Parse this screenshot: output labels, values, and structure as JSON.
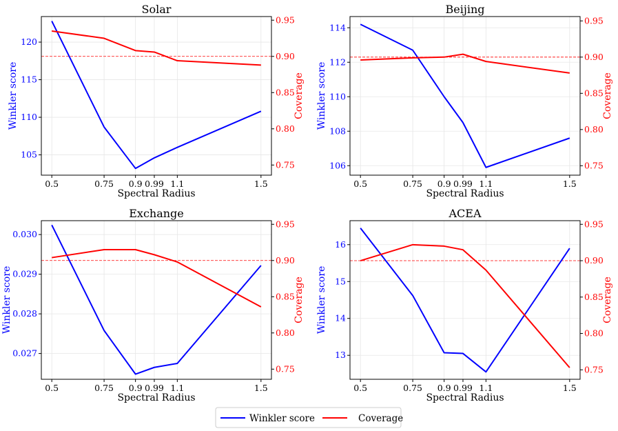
{
  "legend": {
    "items": [
      {
        "label": "Winkler score",
        "color": "#0000ff"
      },
      {
        "label": "Coverage",
        "color": "#ff0000"
      }
    ]
  },
  "colors": {
    "winkler": "#0000ff",
    "coverage": "#ff0000",
    "reference": "#ff0000",
    "grid": "#e6e6e6"
  },
  "chart_data": [
    {
      "type": "line",
      "title": "Solar",
      "xlabel": "Spectral Radius",
      "ylabel_left": "Winkler score",
      "ylabel_right": "Coverage",
      "x": [
        0.5,
        0.75,
        0.9,
        0.99,
        1.1,
        1.5
      ],
      "x_ticks": [
        "0.5",
        "0.75",
        "0.9",
        "0.99",
        "1.1",
        "1.5"
      ],
      "xlim": [
        0.45,
        1.55
      ],
      "ylim_left": [
        102.3,
        123.4
      ],
      "yticks_left": [
        "105",
        "110",
        "115",
        "120"
      ],
      "ylim_right": [
        0.736,
        0.955
      ],
      "yticks_right": [
        "0.75",
        "0.80",
        "0.85",
        "0.90",
        "0.95"
      ],
      "reference_line": 0.9,
      "series": [
        {
          "name": "Winkler score",
          "axis": "left",
          "values": [
            122.8,
            108.7,
            103.2,
            104.6,
            106.0,
            110.8
          ]
        },
        {
          "name": "Coverage",
          "axis": "right",
          "values": [
            0.935,
            0.925,
            0.908,
            0.906,
            0.894,
            0.888
          ]
        }
      ]
    },
    {
      "type": "line",
      "title": "Beijing",
      "xlabel": "Spectral Radius",
      "ylabel_left": "Winkler score",
      "ylabel_right": "Coverage",
      "x": [
        0.5,
        0.75,
        0.9,
        0.99,
        1.1,
        1.5
      ],
      "x_ticks": [
        "0.5",
        "0.75",
        "0.9",
        "0.99",
        "1.1",
        "1.5"
      ],
      "xlim": [
        0.45,
        1.55
      ],
      "ylim_left": [
        105.45,
        114.65
      ],
      "yticks_left": [
        "106",
        "108",
        "110",
        "112",
        "114"
      ],
      "ylim_right": [
        0.737,
        0.956
      ],
      "yticks_right": [
        "0.75",
        "0.80",
        "0.85",
        "0.90",
        "0.95"
      ],
      "reference_line": 0.9,
      "series": [
        {
          "name": "Winkler score",
          "axis": "left",
          "values": [
            114.2,
            112.7,
            110.0,
            108.5,
            105.9,
            107.6
          ]
        },
        {
          "name": "Coverage",
          "axis": "right",
          "values": [
            0.896,
            0.899,
            0.9,
            0.904,
            0.894,
            0.878
          ]
        }
      ]
    },
    {
      "type": "line",
      "title": "Exchange",
      "xlabel": "Spectral Radius",
      "ylabel_left": "Winkler score",
      "ylabel_right": "Coverage",
      "x": [
        0.5,
        0.75,
        0.9,
        0.99,
        1.1,
        1.5
      ],
      "x_ticks": [
        "0.5",
        "0.75",
        "0.9",
        "0.99",
        "1.1",
        "1.5"
      ],
      "xlim": [
        0.45,
        1.55
      ],
      "ylim_left": [
        0.02635,
        0.03035
      ],
      "yticks_left": [
        "0.027",
        "0.028",
        "0.029",
        "0.030"
      ],
      "ylim_right": [
        0.736,
        0.955
      ],
      "yticks_right": [
        "0.75",
        "0.80",
        "0.85",
        "0.90",
        "0.95"
      ],
      "reference_line": 0.9,
      "series": [
        {
          "name": "Winkler score",
          "axis": "left",
          "values": [
            0.03024,
            0.02758,
            0.02648,
            0.02665,
            0.02675,
            0.02922
          ]
        },
        {
          "name": "Coverage",
          "axis": "right",
          "values": [
            0.904,
            0.915,
            0.915,
            0.908,
            0.898,
            0.836
          ]
        }
      ]
    },
    {
      "type": "line",
      "title": "ACEA",
      "xlabel": "Spectral Radius",
      "ylabel_left": "Winkler score",
      "ylabel_right": "Coverage",
      "x": [
        0.5,
        0.75,
        0.9,
        0.99,
        1.1,
        1.5
      ],
      "x_ticks": [
        "0.5",
        "0.75",
        "0.9",
        "0.99",
        "1.1",
        "1.5"
      ],
      "xlim": [
        0.45,
        1.55
      ],
      "ylim_left": [
        12.35,
        16.65
      ],
      "yticks_left": [
        "13",
        "14",
        "15",
        "16"
      ],
      "ylim_right": [
        0.737,
        0.955
      ],
      "yticks_right": [
        "0.75",
        "0.80",
        "0.85",
        "0.90",
        "0.95"
      ],
      "reference_line": 0.9,
      "series": [
        {
          "name": "Winkler score",
          "axis": "left",
          "values": [
            16.45,
            14.62,
            13.07,
            13.05,
            12.55,
            15.9
          ]
        },
        {
          "name": "Coverage",
          "axis": "right",
          "values": [
            0.9,
            0.922,
            0.92,
            0.915,
            0.887,
            0.753
          ]
        }
      ]
    }
  ]
}
